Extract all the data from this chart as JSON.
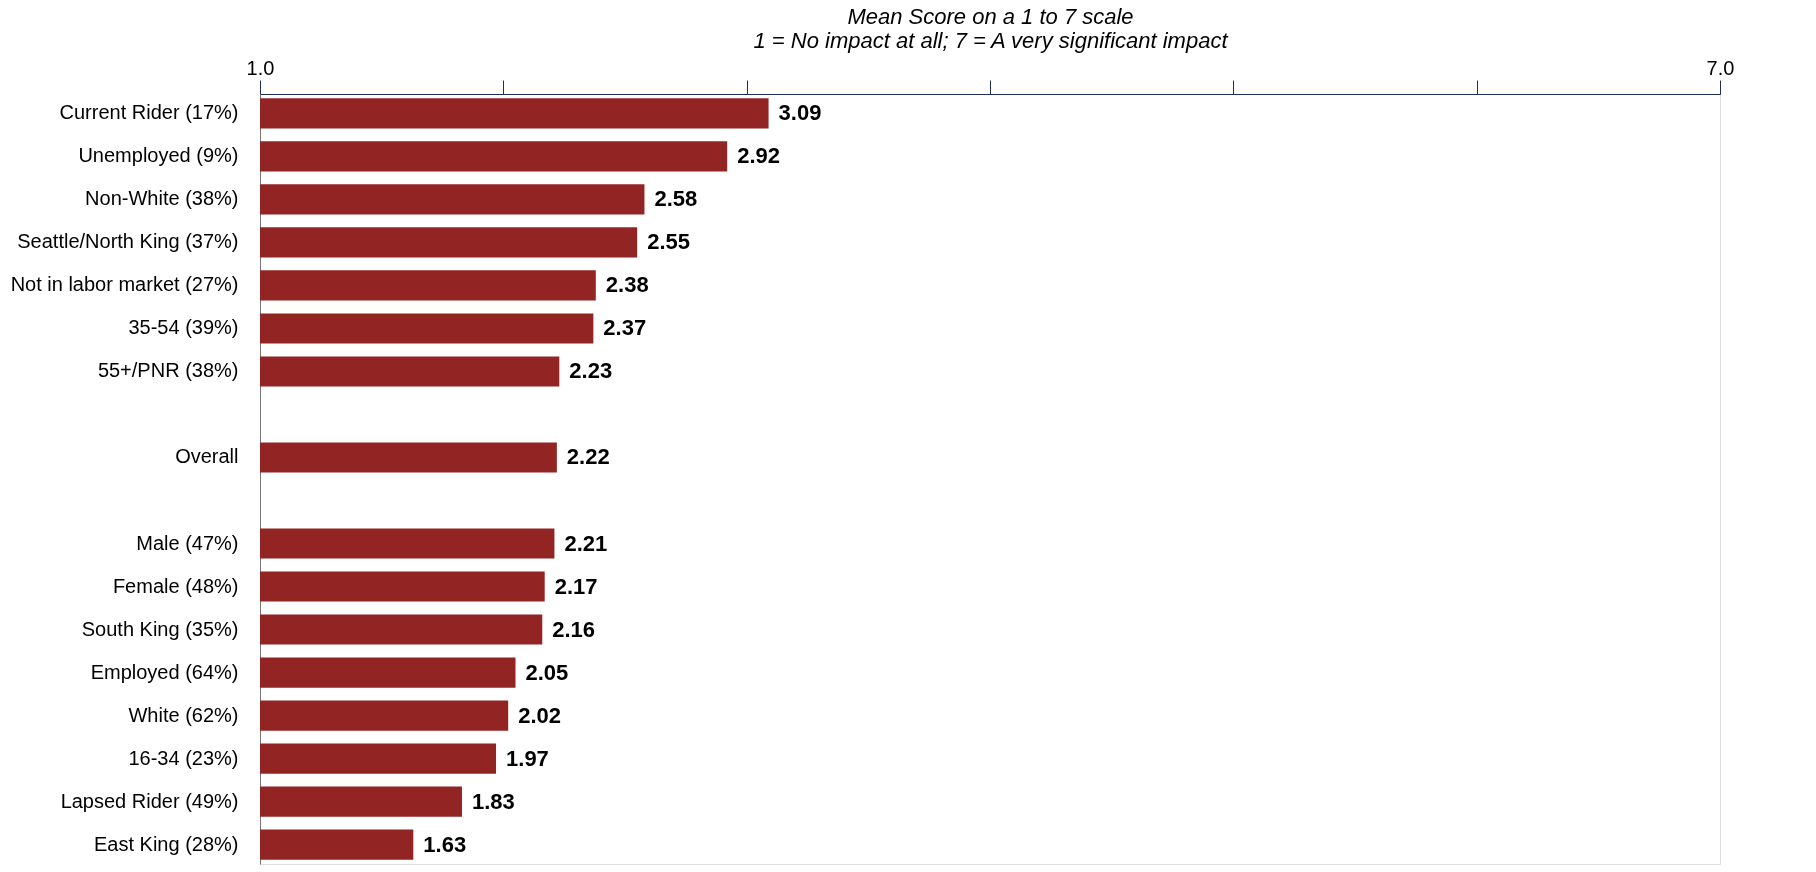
{
  "chart_data": {
    "type": "bar",
    "orientation": "horizontal",
    "xlabel": "Mean Score on a 1 to 7 scale\n1 = No impact at all; 7 = A very significant impact",
    "categories": [
      "Current Rider (17%)",
      "Unemployed (9%)",
      "Non-White (38%)",
      "Seattle/North King (37%)",
      "Not in labor market (27%)",
      "35-54 (39%)",
      "55+/PNR (38%)",
      null,
      "Overall",
      null,
      "Male (47%)",
      "Female (48%)",
      "South King (35%)",
      "Employed (64%)",
      "White (62%)",
      "16-34 (23%)",
      "Lapsed Rider (49%)",
      "East King (28%)"
    ],
    "values": [
      3.09,
      2.92,
      2.58,
      2.55,
      2.38,
      2.37,
      2.23,
      null,
      2.22,
      null,
      2.21,
      2.17,
      2.16,
      2.05,
      2.02,
      1.97,
      1.83,
      1.63
    ],
    "color": "#922524",
    "xlim": [
      1,
      7
    ],
    "xticks": [
      {
        "value": 1,
        "label": "1.0"
      },
      {
        "value": 2,
        "label": null
      },
      {
        "value": 3,
        "label": null
      },
      {
        "value": 4,
        "label": null
      },
      {
        "value": 5,
        "label": null
      },
      {
        "value": 6,
        "label": null
      },
      {
        "value": 7,
        "label": "7.0"
      }
    ],
    "data_labels": true,
    "grid": false
  }
}
